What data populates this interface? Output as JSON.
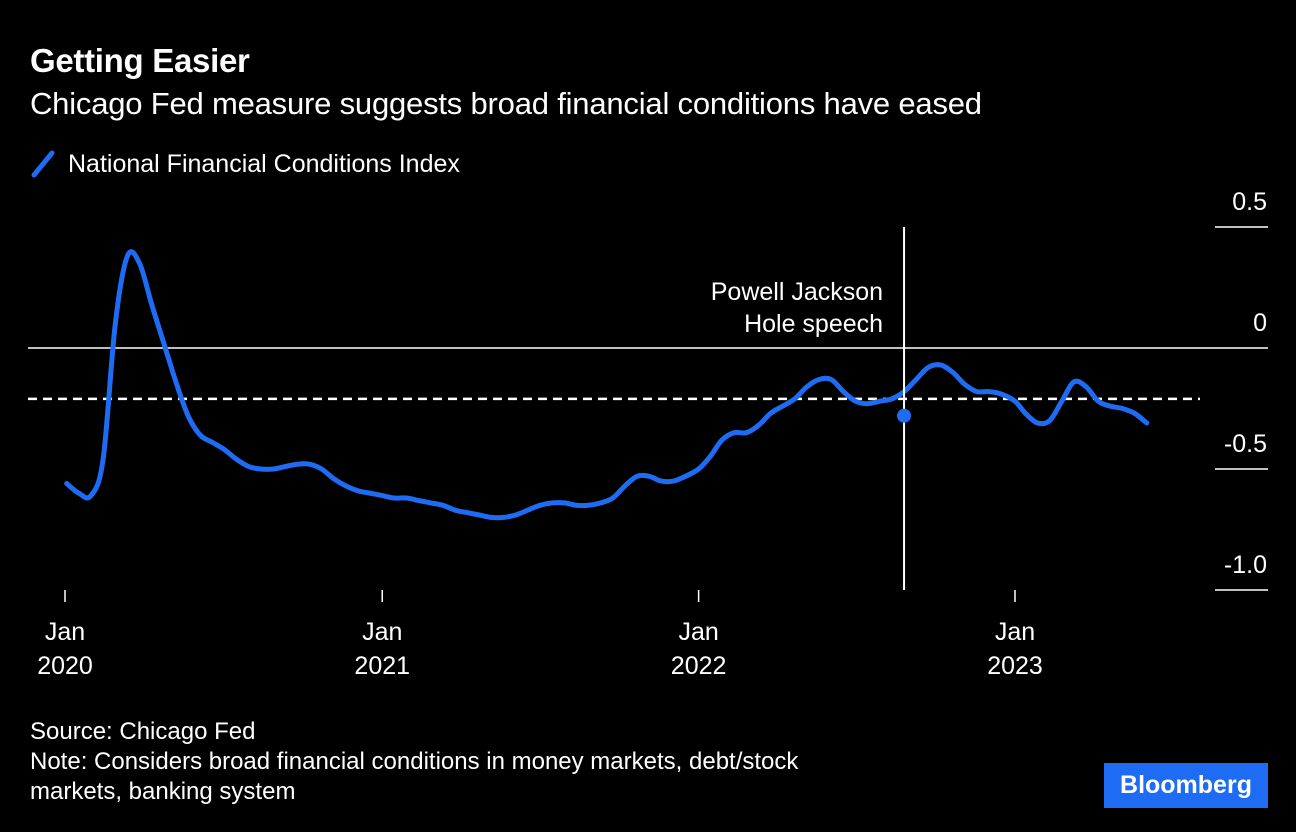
{
  "header": {
    "title": "Getting Easier",
    "subtitle": "Chicago Fed measure suggests broad financial conditions have eased"
  },
  "legend": {
    "label": "National Financial Conditions Index"
  },
  "annotation": {
    "line1": "Powell Jackson",
    "line2": "Hole speech",
    "date": "2022-08-26",
    "value": -0.28
  },
  "footer": {
    "source": "Source: Chicago Fed",
    "note_line1": "Note: Considers broad financial conditions in money markets, debt/stock",
    "note_line2": "markets, banking system"
  },
  "brand": "Bloomberg",
  "colors": {
    "background": "#000000",
    "series": "#1f6cf4",
    "brand_bg": "#1f6cf4",
    "text": "#ffffff"
  },
  "chart_data": {
    "type": "line",
    "title": "Getting Easier",
    "subtitle": "Chicago Fed measure suggests broad financial conditions have eased",
    "xlabel": "",
    "ylabel": "",
    "ylim": [
      -1.0,
      0.5
    ],
    "yticks": [
      "0.5",
      "0",
      "-0.5",
      "-1.0"
    ],
    "ytick_values": [
      0.5,
      0,
      -0.5,
      -1.0
    ],
    "xticks": [
      {
        "date": "2020-01-01",
        "line1": "Jan",
        "line2": "2020"
      },
      {
        "date": "2021-01-01",
        "line1": "Jan",
        "line2": "2021"
      },
      {
        "date": "2022-01-01",
        "line1": "Jan",
        "line2": "2022"
      },
      {
        "date": "2023-01-01",
        "line1": "Jan",
        "line2": "2023"
      }
    ],
    "reference_lines": [
      {
        "style": "dashed",
        "value": -0.21
      }
    ],
    "legend_position": "top-left",
    "grid": false,
    "series": [
      {
        "name": "National Financial Conditions Index",
        "points": [
          [
            "2020-01-03",
            -0.56
          ],
          [
            "2020-01-17",
            -0.6
          ],
          [
            "2020-01-31",
            -0.61
          ],
          [
            "2020-02-14",
            -0.46
          ],
          [
            "2020-02-28",
            0.1
          ],
          [
            "2020-03-13",
            0.38
          ],
          [
            "2020-03-27",
            0.35
          ],
          [
            "2020-04-10",
            0.18
          ],
          [
            "2020-04-24",
            0.02
          ],
          [
            "2020-05-08",
            -0.14
          ],
          [
            "2020-05-22",
            -0.28
          ],
          [
            "2020-06-05",
            -0.36
          ],
          [
            "2020-06-19",
            -0.39
          ],
          [
            "2020-07-03",
            -0.42
          ],
          [
            "2020-07-17",
            -0.46
          ],
          [
            "2020-07-31",
            -0.49
          ],
          [
            "2020-08-14",
            -0.5
          ],
          [
            "2020-08-28",
            -0.5
          ],
          [
            "2020-09-11",
            -0.49
          ],
          [
            "2020-09-25",
            -0.48
          ],
          [
            "2020-10-09",
            -0.48
          ],
          [
            "2020-10-23",
            -0.5
          ],
          [
            "2020-11-06",
            -0.54
          ],
          [
            "2020-11-20",
            -0.57
          ],
          [
            "2020-12-04",
            -0.59
          ],
          [
            "2020-12-18",
            -0.6
          ],
          [
            "2021-01-01",
            -0.61
          ],
          [
            "2021-01-15",
            -0.62
          ],
          [
            "2021-01-29",
            -0.62
          ],
          [
            "2021-02-12",
            -0.63
          ],
          [
            "2021-02-26",
            -0.64
          ],
          [
            "2021-03-12",
            -0.65
          ],
          [
            "2021-03-26",
            -0.67
          ],
          [
            "2021-04-09",
            -0.68
          ],
          [
            "2021-04-23",
            -0.69
          ],
          [
            "2021-05-07",
            -0.7
          ],
          [
            "2021-05-21",
            -0.7
          ],
          [
            "2021-06-04",
            -0.69
          ],
          [
            "2021-06-18",
            -0.67
          ],
          [
            "2021-07-02",
            -0.65
          ],
          [
            "2021-07-16",
            -0.64
          ],
          [
            "2021-07-30",
            -0.64
          ],
          [
            "2021-08-13",
            -0.65
          ],
          [
            "2021-08-27",
            -0.65
          ],
          [
            "2021-09-10",
            -0.64
          ],
          [
            "2021-09-24",
            -0.62
          ],
          [
            "2021-10-08",
            -0.57
          ],
          [
            "2021-10-22",
            -0.53
          ],
          [
            "2021-11-05",
            -0.53
          ],
          [
            "2021-11-19",
            -0.55
          ],
          [
            "2021-12-03",
            -0.55
          ],
          [
            "2021-12-17",
            -0.53
          ],
          [
            "2022-01-01",
            -0.5
          ],
          [
            "2022-01-14",
            -0.45
          ],
          [
            "2022-01-28",
            -0.38
          ],
          [
            "2022-02-11",
            -0.35
          ],
          [
            "2022-02-25",
            -0.35
          ],
          [
            "2022-03-11",
            -0.32
          ],
          [
            "2022-03-25",
            -0.27
          ],
          [
            "2022-04-08",
            -0.24
          ],
          [
            "2022-04-22",
            -0.21
          ],
          [
            "2022-05-06",
            -0.16
          ],
          [
            "2022-05-20",
            -0.13
          ],
          [
            "2022-06-03",
            -0.13
          ],
          [
            "2022-06-17",
            -0.18
          ],
          [
            "2022-07-01",
            -0.22
          ],
          [
            "2022-07-15",
            -0.23
          ],
          [
            "2022-07-29",
            -0.22
          ],
          [
            "2022-08-12",
            -0.21
          ],
          [
            "2022-08-26",
            -0.18
          ],
          [
            "2022-09-09",
            -0.13
          ],
          [
            "2022-09-23",
            -0.08
          ],
          [
            "2022-10-07",
            -0.07
          ],
          [
            "2022-10-21",
            -0.1
          ],
          [
            "2022-11-04",
            -0.15
          ],
          [
            "2022-11-18",
            -0.18
          ],
          [
            "2022-12-02",
            -0.18
          ],
          [
            "2022-12-16",
            -0.19
          ],
          [
            "2023-01-01",
            -0.22
          ],
          [
            "2023-01-13",
            -0.27
          ],
          [
            "2023-01-27",
            -0.31
          ],
          [
            "2023-02-10",
            -0.3
          ],
          [
            "2023-02-24",
            -0.22
          ],
          [
            "2023-03-10",
            -0.14
          ],
          [
            "2023-03-24",
            -0.16
          ],
          [
            "2023-04-07",
            -0.22
          ],
          [
            "2023-04-21",
            -0.24
          ],
          [
            "2023-05-05",
            -0.25
          ],
          [
            "2023-05-19",
            -0.27
          ],
          [
            "2023-06-02",
            -0.31
          ]
        ]
      }
    ]
  }
}
